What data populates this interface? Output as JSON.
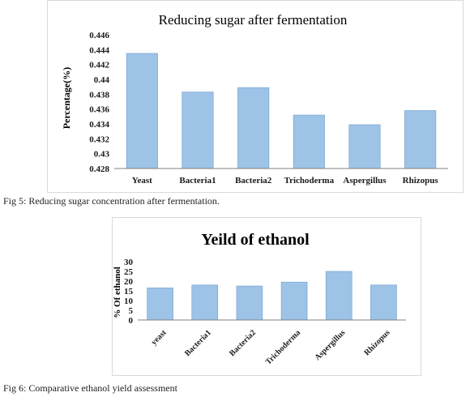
{
  "colors": {
    "bar_fill": "#9dc3e6",
    "bar_stroke": "#6f9fcf",
    "axis": "#808080",
    "text": "#1a1a1a"
  },
  "captions": {
    "fig5": "Fig 5: Reducing sugar concentration after fermentation.",
    "fig6": "Fig 6: Comparative ethanol yield assessment"
  },
  "chart_data": [
    {
      "type": "bar",
      "title": "Reducing sugar after fermentation",
      "xlabel": "",
      "ylabel": "Percentage(%)",
      "categories": [
        "Yeast",
        "Bacteria1",
        "Bacteria2",
        "Trichoderma",
        "Aspergillus",
        "Rhizopus"
      ],
      "values": [
        0.4435,
        0.4383,
        0.4389,
        0.4352,
        0.4339,
        0.4358
      ],
      "ylim": [
        0.428,
        0.446
      ],
      "yticks": [
        "0.428",
        "0.43",
        "0.432",
        "0.434",
        "0.436",
        "0.438",
        "0.44",
        "0.442",
        "0.444",
        "0.446"
      ],
      "grid": false
    },
    {
      "type": "bar",
      "title": "Yeild of ethanol",
      "xlabel": "",
      "ylabel": "% Of ethanol",
      "categories": [
        "yeast",
        "Bacteria1",
        "Bacteria2",
        "Trichoderma",
        "Aspergillus",
        "Rhizopus"
      ],
      "values": [
        16.5,
        18,
        17.5,
        19.5,
        25,
        18
      ],
      "ylim": [
        0,
        30
      ],
      "yticks": [
        "0",
        "5",
        "10",
        "15",
        "20",
        "25",
        "30"
      ],
      "grid": false
    }
  ]
}
